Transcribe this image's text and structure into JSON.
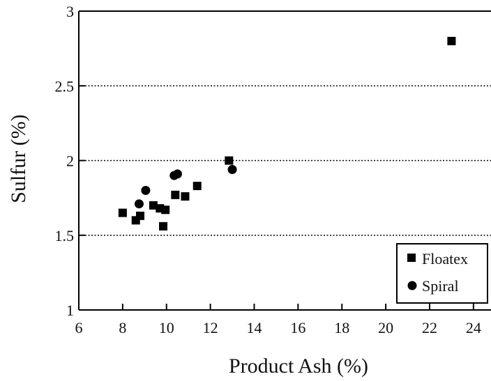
{
  "chart_data": {
    "type": "scatter",
    "title": "",
    "xlabel": "Product Ash (%)",
    "ylabel": "Sulfur (%)",
    "xlim": [
      6,
      24.8
    ],
    "ylim": [
      1,
      3
    ],
    "x_ticks": [
      6,
      8,
      10,
      12,
      14,
      16,
      18,
      20,
      22,
      24
    ],
    "y_ticks": [
      1,
      1.5,
      2,
      2.5,
      3
    ],
    "x_tick_labels": [
      "6",
      "8",
      "10",
      "12",
      "14",
      "16",
      "18",
      "20",
      "22",
      "24"
    ],
    "y_tick_labels": [
      "1",
      "1.5",
      "2",
      "2.5",
      "3"
    ],
    "grid": "horizontal dotted",
    "legend_position": "bottom-right",
    "series": [
      {
        "name": "Floatex",
        "marker": "square",
        "color": "#000000",
        "points": [
          {
            "x": 8.0,
            "y": 1.65
          },
          {
            "x": 8.6,
            "y": 1.6
          },
          {
            "x": 8.8,
            "y": 1.63
          },
          {
            "x": 9.4,
            "y": 1.7
          },
          {
            "x": 9.7,
            "y": 1.68
          },
          {
            "x": 9.85,
            "y": 1.56
          },
          {
            "x": 9.95,
            "y": 1.67
          },
          {
            "x": 10.4,
            "y": 1.77
          },
          {
            "x": 10.85,
            "y": 1.76
          },
          {
            "x": 11.4,
            "y": 1.83
          },
          {
            "x": 12.85,
            "y": 2.0
          },
          {
            "x": 23.0,
            "y": 2.8
          }
        ]
      },
      {
        "name": "Spiral",
        "marker": "circle",
        "color": "#000000",
        "points": [
          {
            "x": 8.75,
            "y": 1.71
          },
          {
            "x": 9.05,
            "y": 1.8
          },
          {
            "x": 10.35,
            "y": 1.9
          },
          {
            "x": 10.5,
            "y": 1.91
          },
          {
            "x": 13.0,
            "y": 1.94
          }
        ]
      }
    ]
  }
}
